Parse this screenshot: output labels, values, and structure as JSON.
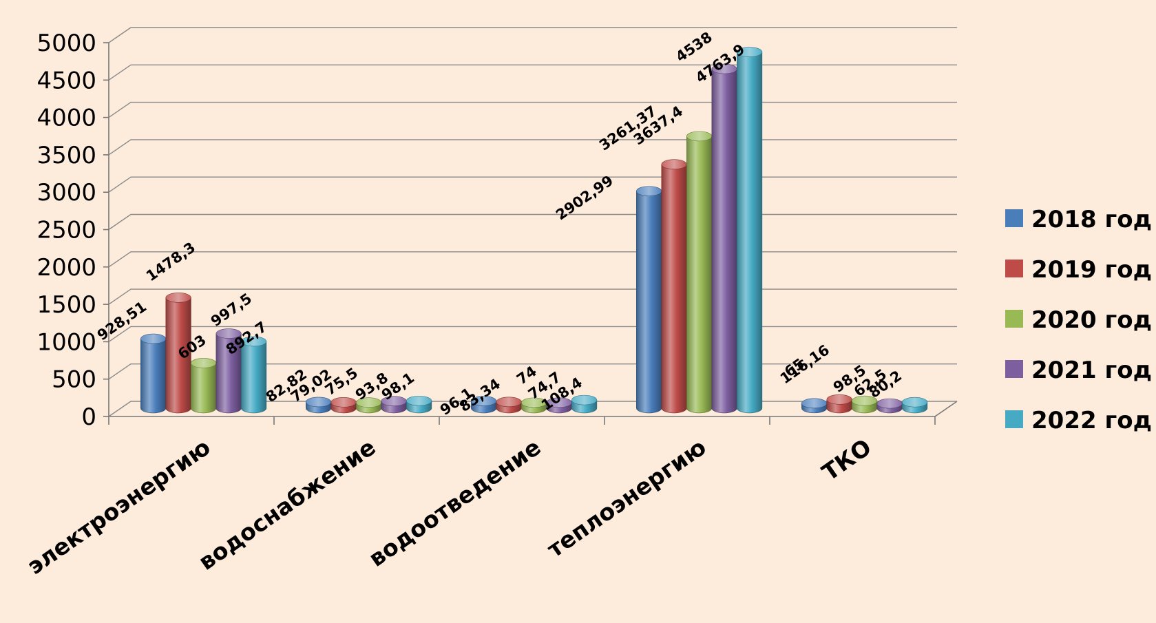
{
  "chart_data": {
    "type": "bar",
    "title": "",
    "xlabel": "",
    "ylabel": "",
    "categories": [
      "электроэнергию",
      "водоснабжение",
      "водоотведение",
      "теплоэнергию",
      "ТКО"
    ],
    "series": [
      {
        "name": "2018 год",
        "color": "#4a7ebb",
        "values": [
          928.51,
          82.82,
          96.1,
          2902.99,
          65
        ],
        "labels": [
          "928,51",
          "82,82",
          "96,1",
          "2902,99",
          "65"
        ]
      },
      {
        "name": "2019 год",
        "color": "#be4b48",
        "values": [
          1478.3,
          79.02,
          83.34,
          3261.37,
          116.16
        ],
        "labels": [
          "1478,3",
          "79,02",
          "83,34",
          "3261,37",
          "116,16"
        ]
      },
      {
        "name": "2020 год",
        "color": "#98b954",
        "values": [
          603,
          75.5,
          74,
          3637.4,
          98.5
        ],
        "labels": [
          "603",
          "75,5",
          "74",
          "3637,4",
          "98,5"
        ]
      },
      {
        "name": "2021 год",
        "color": "#7d5fa0",
        "values": [
          997.5,
          93.8,
          74.7,
          4538,
          62.5
        ],
        "labels": [
          "997,5",
          "93,8",
          "74,7",
          "4538",
          "62,5"
        ]
      },
      {
        "name": "2022 год",
        "color": "#46aac5",
        "values": [
          892.7,
          98.1,
          108.4,
          4763.9,
          80.2
        ],
        "labels": [
          "892,7",
          "98,1",
          "108,4",
          "4763,9",
          "80,2"
        ]
      }
    ],
    "yticks": [
      "0",
      "500",
      "1000",
      "1500",
      "2000",
      "2500",
      "3000",
      "3500",
      "4000",
      "4500",
      "5000"
    ],
    "ylim": [
      0,
      5000
    ],
    "grid": true,
    "legend": "right"
  }
}
